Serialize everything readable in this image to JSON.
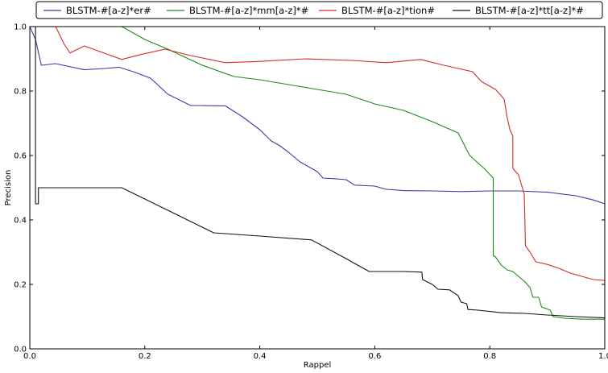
{
  "chart_data": {
    "type": "line",
    "title": "",
    "xlabel": "Rappel",
    "ylabel": "Precision",
    "xlim": [
      0.0,
      1.0
    ],
    "ylim": [
      0.0,
      1.0
    ],
    "xticks": [
      "0.0",
      "0.2",
      "0.4",
      "0.6",
      "0.8",
      "1.0"
    ],
    "yticks": [
      "0.0",
      "0.2",
      "0.4",
      "0.6",
      "0.8",
      "1.0"
    ],
    "grid": false,
    "legend_position": "top",
    "series": [
      {
        "name": "BLSTM-#[a-z]*er#",
        "color": "#3a3aa8",
        "points": [
          [
            0.0,
            1.0
          ],
          [
            0.01,
            0.96
          ],
          [
            0.02,
            0.88
          ],
          [
            0.045,
            0.885
          ],
          [
            0.095,
            0.866
          ],
          [
            0.13,
            0.87
          ],
          [
            0.155,
            0.874
          ],
          [
            0.18,
            0.86
          ],
          [
            0.21,
            0.84
          ],
          [
            0.24,
            0.79
          ],
          [
            0.28,
            0.755
          ],
          [
            0.3,
            0.755
          ],
          [
            0.34,
            0.754
          ],
          [
            0.37,
            0.72
          ],
          [
            0.4,
            0.68
          ],
          [
            0.42,
            0.645
          ],
          [
            0.435,
            0.63
          ],
          [
            0.45,
            0.61
          ],
          [
            0.47,
            0.58
          ],
          [
            0.49,
            0.56
          ],
          [
            0.5,
            0.55
          ],
          [
            0.51,
            0.53
          ],
          [
            0.53,
            0.528
          ],
          [
            0.55,
            0.525
          ],
          [
            0.565,
            0.508
          ],
          [
            0.6,
            0.505
          ],
          [
            0.62,
            0.495
          ],
          [
            0.65,
            0.491
          ],
          [
            0.7,
            0.49
          ],
          [
            0.75,
            0.488
          ],
          [
            0.8,
            0.49
          ],
          [
            0.85,
            0.49
          ],
          [
            0.9,
            0.486
          ],
          [
            0.95,
            0.475
          ],
          [
            0.98,
            0.462
          ],
          [
            1.0,
            0.45
          ]
        ]
      },
      {
        "name": "BLSTM-#[a-z]*mm[a-z]*#",
        "color": "#1a8a1a",
        "points": [
          [
            0.16,
            1.0
          ],
          [
            0.2,
            0.96
          ],
          [
            0.24,
            0.93
          ],
          [
            0.3,
            0.88
          ],
          [
            0.355,
            0.845
          ],
          [
            0.4,
            0.835
          ],
          [
            0.45,
            0.82
          ],
          [
            0.5,
            0.805
          ],
          [
            0.55,
            0.79
          ],
          [
            0.6,
            0.76
          ],
          [
            0.65,
            0.74
          ],
          [
            0.7,
            0.705
          ],
          [
            0.745,
            0.67
          ],
          [
            0.765,
            0.6
          ],
          [
            0.79,
            0.56
          ],
          [
            0.806,
            0.53
          ],
          [
            0.806,
            0.29
          ],
          [
            0.81,
            0.285
          ],
          [
            0.82,
            0.26
          ],
          [
            0.83,
            0.245
          ],
          [
            0.84,
            0.24
          ],
          [
            0.85,
            0.225
          ],
          [
            0.86,
            0.21
          ],
          [
            0.87,
            0.19
          ],
          [
            0.875,
            0.16
          ],
          [
            0.885,
            0.16
          ],
          [
            0.89,
            0.13
          ],
          [
            0.905,
            0.12
          ],
          [
            0.91,
            0.1
          ],
          [
            0.93,
            0.095
          ],
          [
            0.96,
            0.092
          ],
          [
            1.0,
            0.092
          ]
        ]
      },
      {
        "name": "BLSTM-#[a-z]*tion#",
        "color": "#d42a2a",
        "points": [
          [
            0.045,
            1.0
          ],
          [
            0.06,
            0.945
          ],
          [
            0.07,
            0.918
          ],
          [
            0.095,
            0.94
          ],
          [
            0.16,
            0.898
          ],
          [
            0.19,
            0.912
          ],
          [
            0.235,
            0.93
          ],
          [
            0.28,
            0.91
          ],
          [
            0.34,
            0.888
          ],
          [
            0.4,
            0.892
          ],
          [
            0.48,
            0.9
          ],
          [
            0.56,
            0.895
          ],
          [
            0.62,
            0.888
          ],
          [
            0.68,
            0.898
          ],
          [
            0.72,
            0.88
          ],
          [
            0.77,
            0.86
          ],
          [
            0.785,
            0.83
          ],
          [
            0.81,
            0.805
          ],
          [
            0.825,
            0.775
          ],
          [
            0.83,
            0.72
          ],
          [
            0.835,
            0.68
          ],
          [
            0.84,
            0.66
          ],
          [
            0.84,
            0.56
          ],
          [
            0.85,
            0.54
          ],
          [
            0.86,
            0.48
          ],
          [
            0.862,
            0.32
          ],
          [
            0.87,
            0.3
          ],
          [
            0.88,
            0.27
          ],
          [
            0.9,
            0.262
          ],
          [
            0.92,
            0.25
          ],
          [
            0.94,
            0.235
          ],
          [
            0.96,
            0.225
          ],
          [
            0.98,
            0.215
          ],
          [
            1.0,
            0.212
          ]
        ]
      },
      {
        "name": "BLSTM-#[a-z]*tt[a-z]*#",
        "color": "#111111",
        "points": [
          [
            0.01,
            1.0
          ],
          [
            0.01,
            0.45
          ],
          [
            0.015,
            0.45
          ],
          [
            0.015,
            0.5
          ],
          [
            0.16,
            0.5
          ],
          [
            0.24,
            0.43
          ],
          [
            0.32,
            0.36
          ],
          [
            0.4,
            0.35
          ],
          [
            0.49,
            0.338
          ],
          [
            0.55,
            0.28
          ],
          [
            0.59,
            0.24
          ],
          [
            0.65,
            0.24
          ],
          [
            0.682,
            0.238
          ],
          [
            0.683,
            0.215
          ],
          [
            0.7,
            0.2
          ],
          [
            0.71,
            0.185
          ],
          [
            0.73,
            0.183
          ],
          [
            0.745,
            0.165
          ],
          [
            0.75,
            0.145
          ],
          [
            0.76,
            0.14
          ],
          [
            0.762,
            0.122
          ],
          [
            0.78,
            0.12
          ],
          [
            0.82,
            0.112
          ],
          [
            0.86,
            0.11
          ],
          [
            0.9,
            0.105
          ],
          [
            0.95,
            0.1
          ],
          [
            1.0,
            0.096
          ]
        ]
      }
    ]
  }
}
